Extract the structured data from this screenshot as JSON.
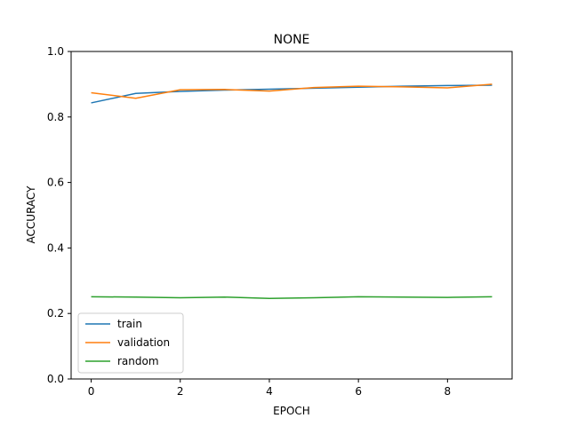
{
  "chart_data": {
    "type": "line",
    "title": "NONE",
    "xlabel": "EPOCH",
    "ylabel": "ACCURACY",
    "x": [
      0,
      1,
      2,
      3,
      4,
      5,
      6,
      7,
      8,
      9
    ],
    "xlim": [
      -0.45,
      9.45
    ],
    "ylim": [
      0.0,
      1.0
    ],
    "xticks": [
      0,
      2,
      4,
      6,
      8
    ],
    "yticks": [
      0.0,
      0.2,
      0.4,
      0.6,
      0.8,
      1.0
    ],
    "xtick_labels": [
      "0",
      "2",
      "4",
      "6",
      "8"
    ],
    "ytick_labels": [
      "0.0",
      "0.2",
      "0.4",
      "0.6",
      "0.8",
      "1.0"
    ],
    "grid": false,
    "legend_position": "lower-left",
    "series": [
      {
        "name": "train",
        "color": "#1f77b4",
        "values": [
          0.843,
          0.872,
          0.878,
          0.882,
          0.885,
          0.888,
          0.891,
          0.894,
          0.896,
          0.897
        ]
      },
      {
        "name": "validation",
        "color": "#ff7f0e",
        "values": [
          0.874,
          0.857,
          0.883,
          0.884,
          0.879,
          0.89,
          0.894,
          0.892,
          0.889,
          0.9
        ]
      },
      {
        "name": "random",
        "color": "#2ca02c",
        "values": [
          0.251,
          0.25,
          0.248,
          0.25,
          0.246,
          0.248,
          0.251,
          0.25,
          0.249,
          0.251
        ]
      }
    ]
  }
}
